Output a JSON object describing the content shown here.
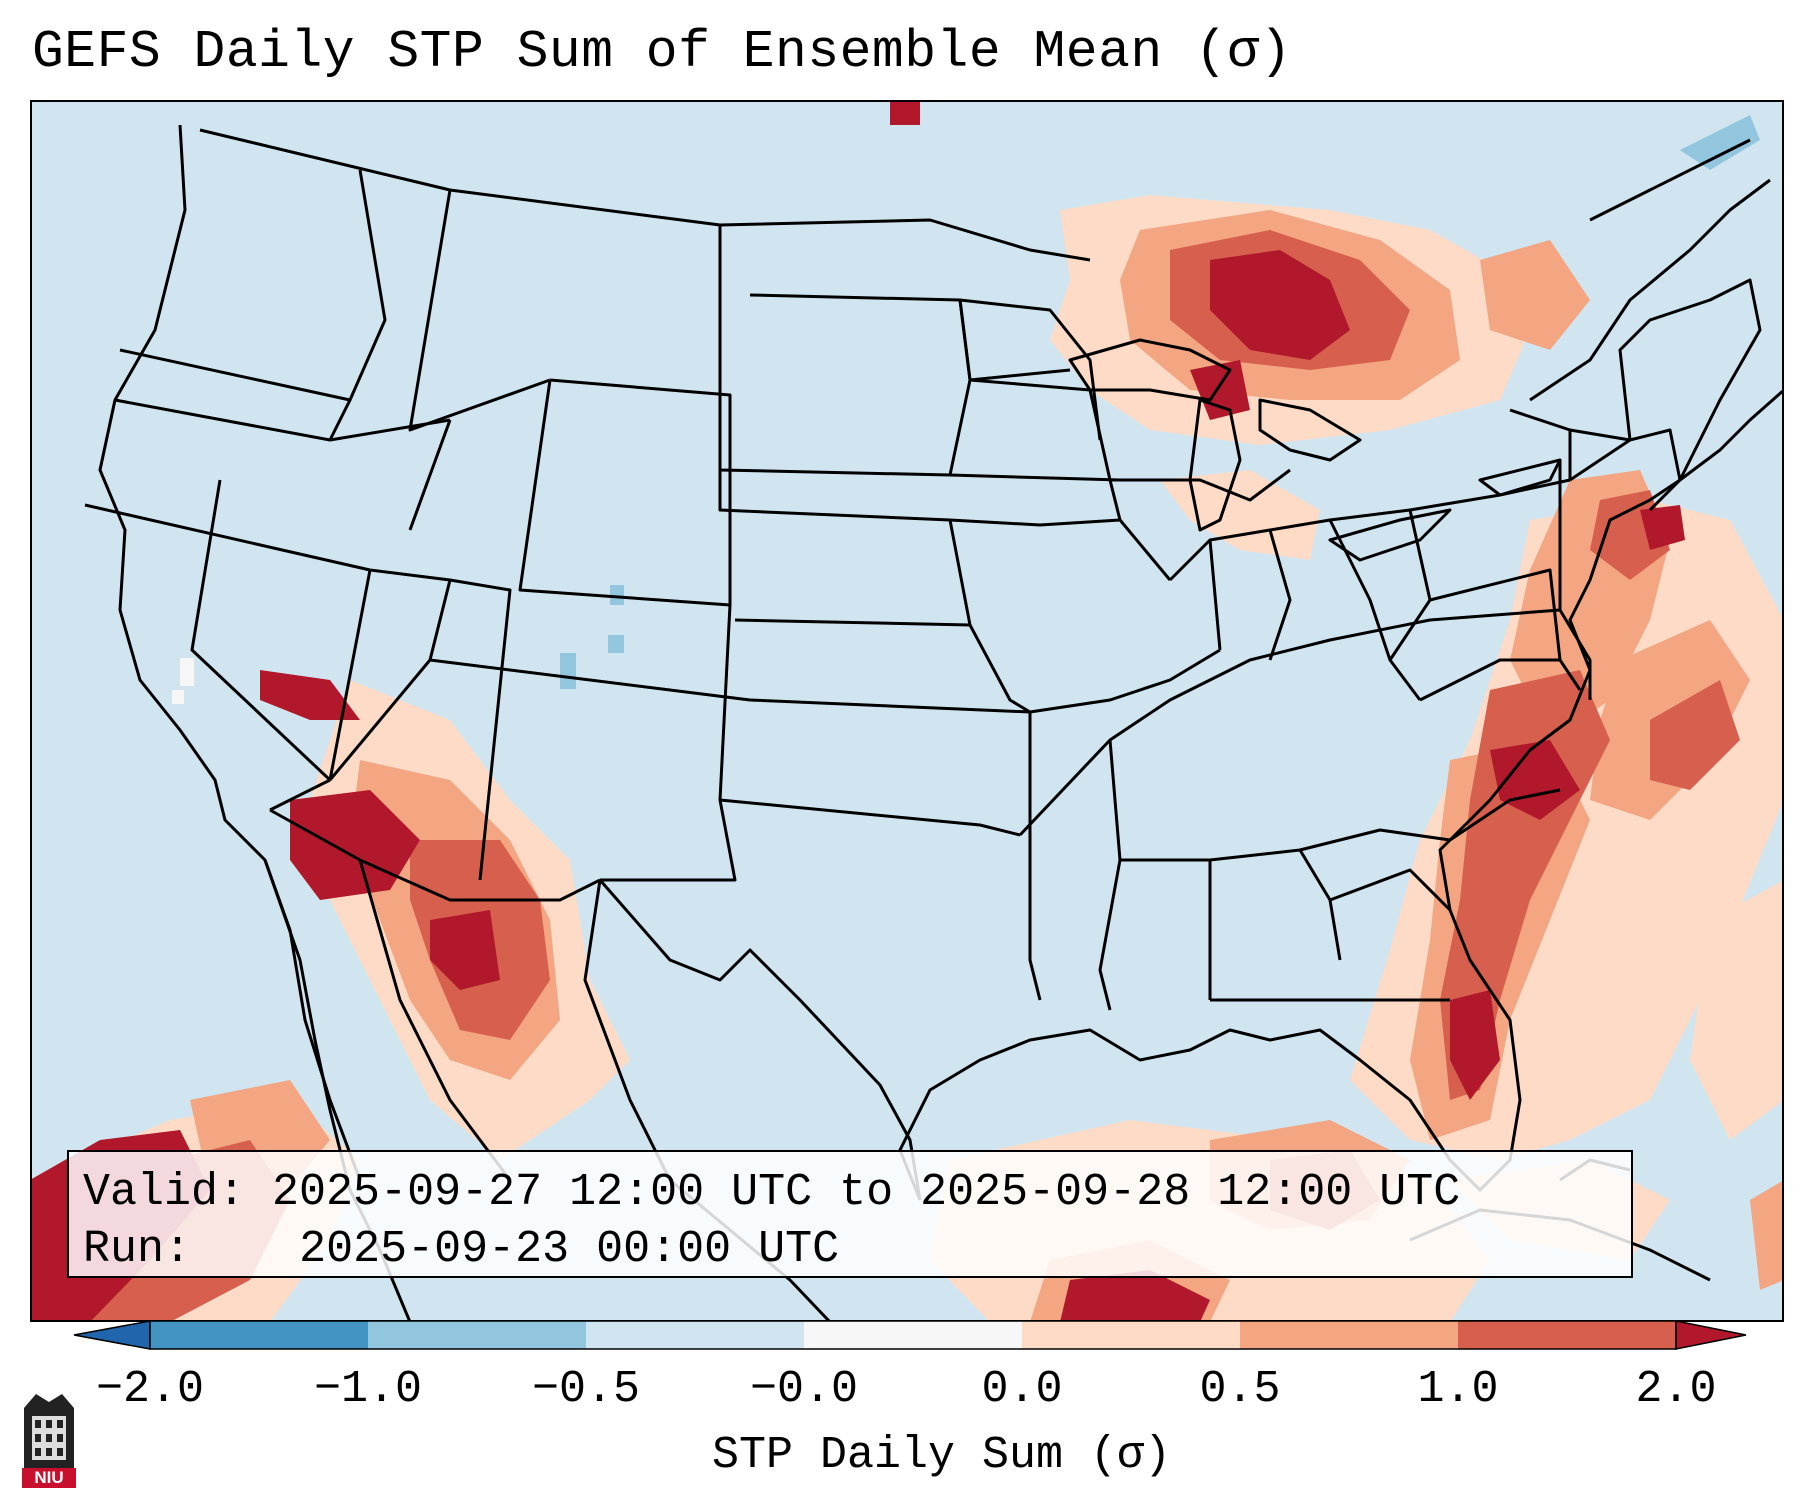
{
  "title": "GEFS Daily STP Sum of Ensemble Mean (σ)",
  "info": {
    "valid_label": "Valid:",
    "valid_value": "2025-09-27 12:00 UTC to 2025-09-28 12:00 UTC",
    "run_label": "Run:",
    "run_value": "2025-09-23 00:00 UTC"
  },
  "colorbar": {
    "title": "STP Daily Sum (σ)",
    "ticks": [
      "−2.0",
      "−1.0",
      "−0.5",
      "−0.0",
      "0.0",
      "0.5",
      "1.0",
      "2.0"
    ],
    "colors": {
      "below": "#2166ac",
      "bin_neg2_neg1": "#4393c3",
      "bin_neg1_neg05": "#92c5de",
      "bin_neg05_0": "#d1e5f0",
      "bin_0_0": "#f7f7f7",
      "bin_0_05": "#fddbc7",
      "bin_05_1": "#f4a582",
      "bin_1_2": "#d6604d",
      "above": "#b2182b"
    }
  },
  "map": {
    "background_color": "#d1e5f0",
    "region": "Contiguous United States",
    "anomaly_areas": [
      {
        "name": "Upper Midwest / Lake Superior",
        "level": "above 2.0"
      },
      {
        "name": "Mid-Atlantic / Virginia",
        "level": "above 2.0"
      },
      {
        "name": "Southern New England",
        "level": "above 2.0"
      },
      {
        "name": "Arizona / Southern California",
        "level": "above 2.0"
      },
      {
        "name": "Florida East Coast",
        "level": "1.0 to 2.0"
      },
      {
        "name": "Western Atlantic",
        "level": "0.5 to 2.0"
      },
      {
        "name": "Gulf of Mexico",
        "level": "0.5 to 2.0"
      },
      {
        "name": "Eastern Pacific",
        "level": "above 2.0"
      }
    ]
  },
  "logo": {
    "text": "NIU"
  }
}
